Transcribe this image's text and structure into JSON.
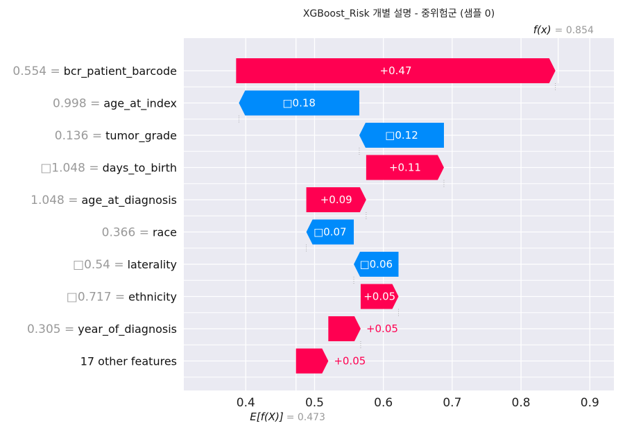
{
  "chart_data": {
    "type": "waterfall",
    "title": "XGBoost_Risk 개별 설명 - 중위험군 (샘플 0)",
    "fx_label": "f(x)",
    "fx_value_text": "= 0.854",
    "fx": 0.854,
    "ex_label": "E[f(X)]",
    "ex_value_text": "= 0.473",
    "base_value": 0.473,
    "xlim": [
      0.31,
      0.935
    ],
    "x_ticks": [
      0.4,
      0.5,
      0.6,
      0.7,
      0.8,
      0.9
    ],
    "x_tick_labels": [
      "0.4",
      "0.5",
      "0.6",
      "0.7",
      "0.8",
      "0.9"
    ],
    "grid": true,
    "colors": {
      "positive": "#ff0051",
      "negative": "#008bfb",
      "background": "#eaeaf2",
      "grid": "#ffffff"
    },
    "features": [
      {
        "value_text": "0.554 =",
        "name": "bcr_patient_barcode",
        "start": 0.386,
        "end": 0.85,
        "label": "+0.47",
        "sign": "positive",
        "label_inside": true
      },
      {
        "value_text": "0.998 =",
        "name": "age_at_index",
        "start": 0.565,
        "end": 0.39,
        "label": "□0.18",
        "sign": "negative",
        "label_inside": true
      },
      {
        "value_text": "0.136 =",
        "name": "tumor_grade",
        "start": 0.688,
        "end": 0.565,
        "label": "□0.12",
        "sign": "negative",
        "label_inside": true
      },
      {
        "value_text": "□1.048 =",
        "name": "days_to_birth",
        "start": 0.575,
        "end": 0.688,
        "label": "+0.11",
        "sign": "positive",
        "label_inside": true
      },
      {
        "value_text": "1.048 =",
        "name": "age_at_diagnosis",
        "start": 0.488,
        "end": 0.575,
        "label": "+0.09",
        "sign": "positive",
        "label_inside": true
      },
      {
        "value_text": "0.366 =",
        "name": "race",
        "start": 0.557,
        "end": 0.488,
        "label": "□0.07",
        "sign": "negative",
        "label_inside": true
      },
      {
        "value_text": "□0.54 =",
        "name": "laterality",
        "start": 0.622,
        "end": 0.557,
        "label": "□0.06",
        "sign": "negative",
        "label_inside": true
      },
      {
        "value_text": "□0.717 =",
        "name": "ethnicity",
        "start": 0.567,
        "end": 0.622,
        "label": "+0.05",
        "sign": "positive",
        "label_inside": true
      },
      {
        "value_text": "0.305 =",
        "name": "year_of_diagnosis",
        "start": 0.52,
        "end": 0.567,
        "label": "+0.05",
        "sign": "positive",
        "label_inside": false
      },
      {
        "value_text": "",
        "name": "17 other features",
        "start": 0.473,
        "end": 0.52,
        "label": "+0.05",
        "sign": "positive",
        "label_inside": false
      }
    ]
  }
}
